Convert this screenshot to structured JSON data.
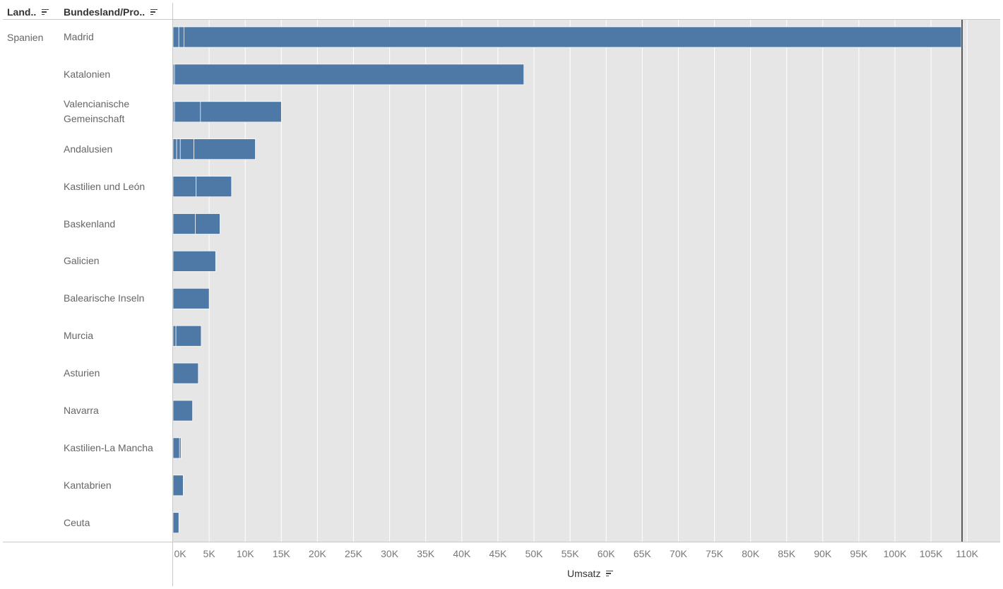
{
  "header": {
    "land_label": "Land..",
    "bundes_label": "Bundesland/Pro..",
    "sort_icon": "sort-descending-icon"
  },
  "colors": {
    "bar": "#4e79a7",
    "plot_background": "#e6e6e6",
    "gridline": "#ffffff",
    "reference_line": "#000000"
  },
  "chart_data": {
    "type": "bar",
    "orientation": "horizontal",
    "stacked": true,
    "country": "Spanien",
    "categories": [
      "Madrid",
      "Katalonien",
      "Valencianische Gemeinschaft",
      "Andalusien",
      "Kastilien und León",
      "Baskenland",
      "Galicien",
      "Balearische Inseln",
      "Murcia",
      "Asturien",
      "Navarra",
      "Kastilien-La Mancha",
      "Kantabrien",
      "Ceuta"
    ],
    "values": [
      109200,
      48600,
      15000,
      11400,
      8100,
      6500,
      5900,
      5000,
      3900,
      3500,
      2700,
      1100,
      1400,
      800
    ],
    "segments": [
      [
        800,
        700,
        107700
      ],
      [
        200,
        48400
      ],
      [
        200,
        3600,
        11200
      ],
      [
        500,
        500,
        1900,
        8500
      ],
      [
        3200,
        4900
      ],
      [
        3100,
        3400
      ],
      [
        5900
      ],
      [
        5000
      ],
      [
        400,
        3500
      ],
      [
        3500
      ],
      [
        2700
      ],
      [
        900,
        200
      ],
      [
        1400
      ],
      [
        800
      ]
    ],
    "xlabel": "Umsatz",
    "xlim": [
      0,
      110000
    ],
    "ticks": [
      0,
      5000,
      10000,
      15000,
      20000,
      25000,
      30000,
      35000,
      40000,
      45000,
      50000,
      55000,
      60000,
      65000,
      70000,
      75000,
      80000,
      85000,
      90000,
      95000,
      100000,
      105000,
      110000
    ],
    "tick_labels": [
      "0K",
      "5K",
      "10K",
      "15K",
      "20K",
      "25K",
      "30K",
      "35K",
      "40K",
      "45K",
      "50K",
      "55K",
      "60K",
      "65K",
      "70K",
      "75K",
      "80K",
      "85K",
      "90K",
      "95K",
      "100K",
      "105K",
      "110K"
    ],
    "reference_line": 109200,
    "grid": true,
    "legend": "none"
  }
}
